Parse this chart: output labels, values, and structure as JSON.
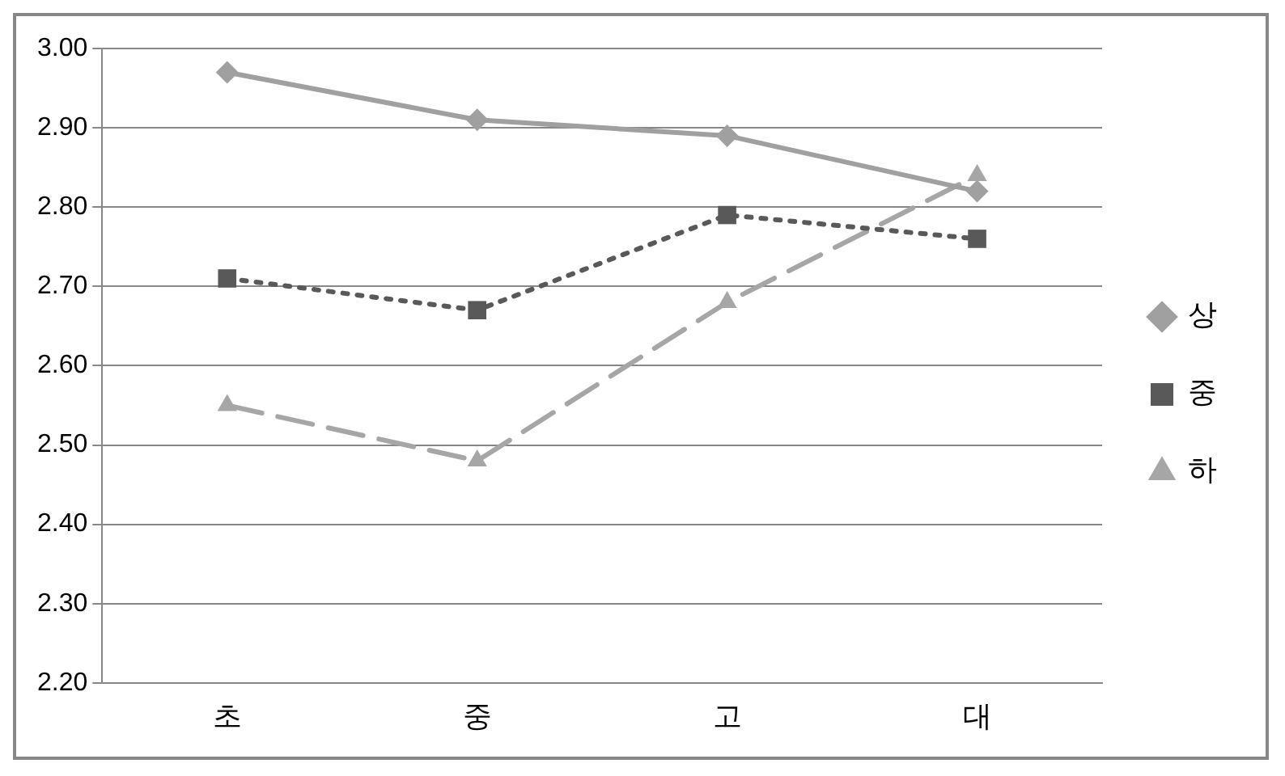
{
  "chart_data": {
    "type": "line",
    "categories": [
      "초",
      "중",
      "고",
      "대"
    ],
    "series": [
      {
        "name": "상",
        "color": "#a0a0a0",
        "values": [
          2.97,
          2.91,
          2.89,
          2.82
        ],
        "marker": "diamond",
        "line_style": "solid"
      },
      {
        "name": "중",
        "color": "#595959",
        "values": [
          2.71,
          2.67,
          2.79,
          2.76
        ],
        "marker": "square",
        "line_style": "dotted"
      },
      {
        "name": "하",
        "color": "#a6a6a6",
        "values": [
          2.55,
          2.48,
          2.68,
          2.84
        ],
        "marker": "triangle",
        "line_style": "dashed"
      }
    ],
    "ylim": [
      2.2,
      3.0
    ],
    "yticks": [
      {
        "value": 2.2,
        "label": "2.20"
      },
      {
        "value": 2.3,
        "label": "2.30"
      },
      {
        "value": 2.4,
        "label": "2.40"
      },
      {
        "value": 2.5,
        "label": "2.50"
      },
      {
        "value": 2.6,
        "label": "2.60"
      },
      {
        "value": 2.7,
        "label": "2.70"
      },
      {
        "value": 2.8,
        "label": "2.80"
      },
      {
        "value": 2.9,
        "label": "2.90"
      },
      {
        "value": 3.0,
        "label": "3.00"
      }
    ],
    "grid": "y",
    "legend": "right"
  }
}
